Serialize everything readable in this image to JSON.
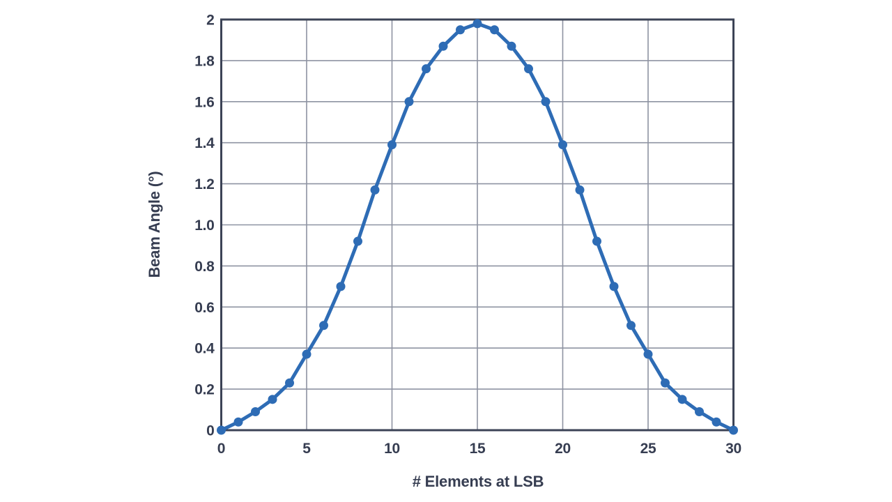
{
  "figure": {
    "description": "Beam angle versus number of elements at LSB for a 30-element array"
  },
  "chart_data": {
    "type": "line",
    "title": "",
    "xlabel": "# Elements at LSB",
    "ylabel": "Beam Angle (°)",
    "xlim": [
      0,
      30
    ],
    "ylim": [
      0,
      2
    ],
    "grid": true,
    "legend": "none",
    "xticks": {
      "values": [
        0,
        5,
        10,
        15,
        20,
        25,
        30
      ],
      "labels": [
        "0",
        "5",
        "10",
        "15",
        "20",
        "25",
        "30"
      ]
    },
    "yticks": {
      "values": [
        0,
        0.2,
        0.4,
        0.6,
        0.8,
        1.0,
        1.2,
        1.4,
        1.6,
        1.8,
        2.0
      ],
      "labels": [
        "0",
        "0.2",
        "0.4",
        "0.6",
        "0.8",
        "1.0",
        "1.2",
        "1.4",
        "1.6",
        "1.8",
        "2"
      ]
    },
    "series": [
      {
        "name": "beam-angle",
        "marker": "circle",
        "x": [
          0,
          1,
          2,
          3,
          4,
          5,
          6,
          7,
          8,
          9,
          10,
          11,
          12,
          13,
          14,
          15,
          16,
          17,
          18,
          19,
          20,
          21,
          22,
          23,
          24,
          25,
          26,
          27,
          28,
          29,
          30
        ],
        "y": [
          0,
          0.04,
          0.09,
          0.15,
          0.23,
          0.37,
          0.51,
          0.7,
          0.92,
          1.17,
          1.39,
          1.6,
          1.76,
          1.87,
          1.95,
          1.98,
          1.95,
          1.87,
          1.76,
          1.6,
          1.39,
          1.17,
          0.92,
          0.7,
          0.51,
          0.37,
          0.23,
          0.15,
          0.09,
          0.04,
          0
        ]
      }
    ],
    "colors": {
      "line": "#2e6cb5",
      "marker": "#2e6cb5",
      "grid": "#8e93a2",
      "axis_border": "#3c4356",
      "text": "#363d51",
      "background": "#ffffff"
    }
  }
}
